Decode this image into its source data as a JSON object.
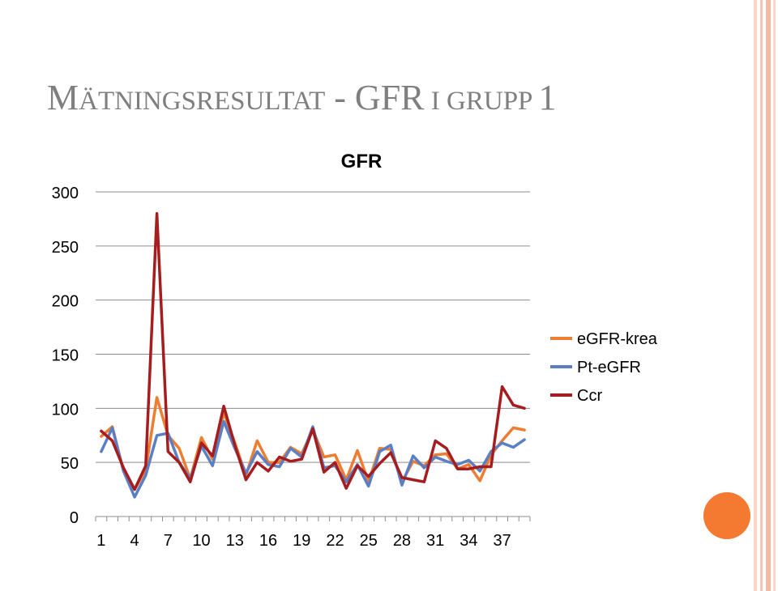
{
  "slide": {
    "title_parts": [
      {
        "text": "M",
        "size": "big"
      },
      {
        "text": "ÄTNINGSRESULTAT",
        "size": "small"
      },
      {
        "text": " - GFR",
        "size": "big"
      },
      {
        "text": " I GRUPP ",
        "size": "small"
      },
      {
        "text": "1",
        "size": "big"
      }
    ],
    "accent_color": "#f47a31",
    "stripe_color": "#f5c6b5"
  },
  "chart_data": {
    "type": "line",
    "title": "GFR",
    "xlabel": "",
    "ylabel": "",
    "x": [
      1,
      2,
      3,
      4,
      5,
      6,
      7,
      8,
      9,
      10,
      11,
      12,
      13,
      14,
      15,
      16,
      17,
      18,
      19,
      20,
      21,
      22,
      23,
      24,
      25,
      26,
      27,
      28,
      29,
      30,
      31,
      32,
      33,
      34,
      35,
      36,
      37,
      38,
      39
    ],
    "x_tick_labels": [
      "1",
      "4",
      "7",
      "10",
      "13",
      "16",
      "19",
      "22",
      "25",
      "28",
      "31",
      "34",
      "37"
    ],
    "x_tick_values": [
      1,
      4,
      7,
      10,
      13,
      16,
      19,
      22,
      25,
      28,
      31,
      34,
      37
    ],
    "ylim": [
      0,
      300
    ],
    "y_ticks": [
      0,
      50,
      100,
      150,
      200,
      250,
      300
    ],
    "grid": "horizontal",
    "legend": "right",
    "series": [
      {
        "name": "eGFR-krea",
        "color": "#ed7d31",
        "values": [
          74,
          83,
          42,
          25,
          43,
          110,
          75,
          63,
          35,
          73,
          53,
          96,
          68,
          38,
          70,
          50,
          50,
          64,
          58,
          80,
          55,
          57,
          34,
          61,
          32,
          63,
          62,
          32,
          51,
          47,
          57,
          58,
          44,
          48,
          33,
          57,
          70,
          82,
          80
        ]
      },
      {
        "name": "Pt-eGFR",
        "color": "#5b7fc4",
        "values": [
          60,
          82,
          42,
          18,
          38,
          75,
          77,
          50,
          35,
          65,
          47,
          88,
          63,
          40,
          60,
          48,
          46,
          63,
          55,
          83,
          45,
          47,
          32,
          48,
          28,
          60,
          66,
          29,
          56,
          45,
          55,
          51,
          48,
          52,
          42,
          60,
          68,
          64,
          71
        ]
      },
      {
        "name": "Ccr",
        "color": "#a51d1e",
        "values": [
          79,
          70,
          45,
          25,
          47,
          280,
          60,
          50,
          32,
          68,
          56,
          102,
          66,
          34,
          50,
          42,
          55,
          51,
          53,
          81,
          41,
          50,
          26,
          47,
          37,
          49,
          59,
          36,
          34,
          32,
          70,
          63,
          44,
          44,
          46,
          46,
          120,
          103,
          100
        ]
      }
    ]
  }
}
